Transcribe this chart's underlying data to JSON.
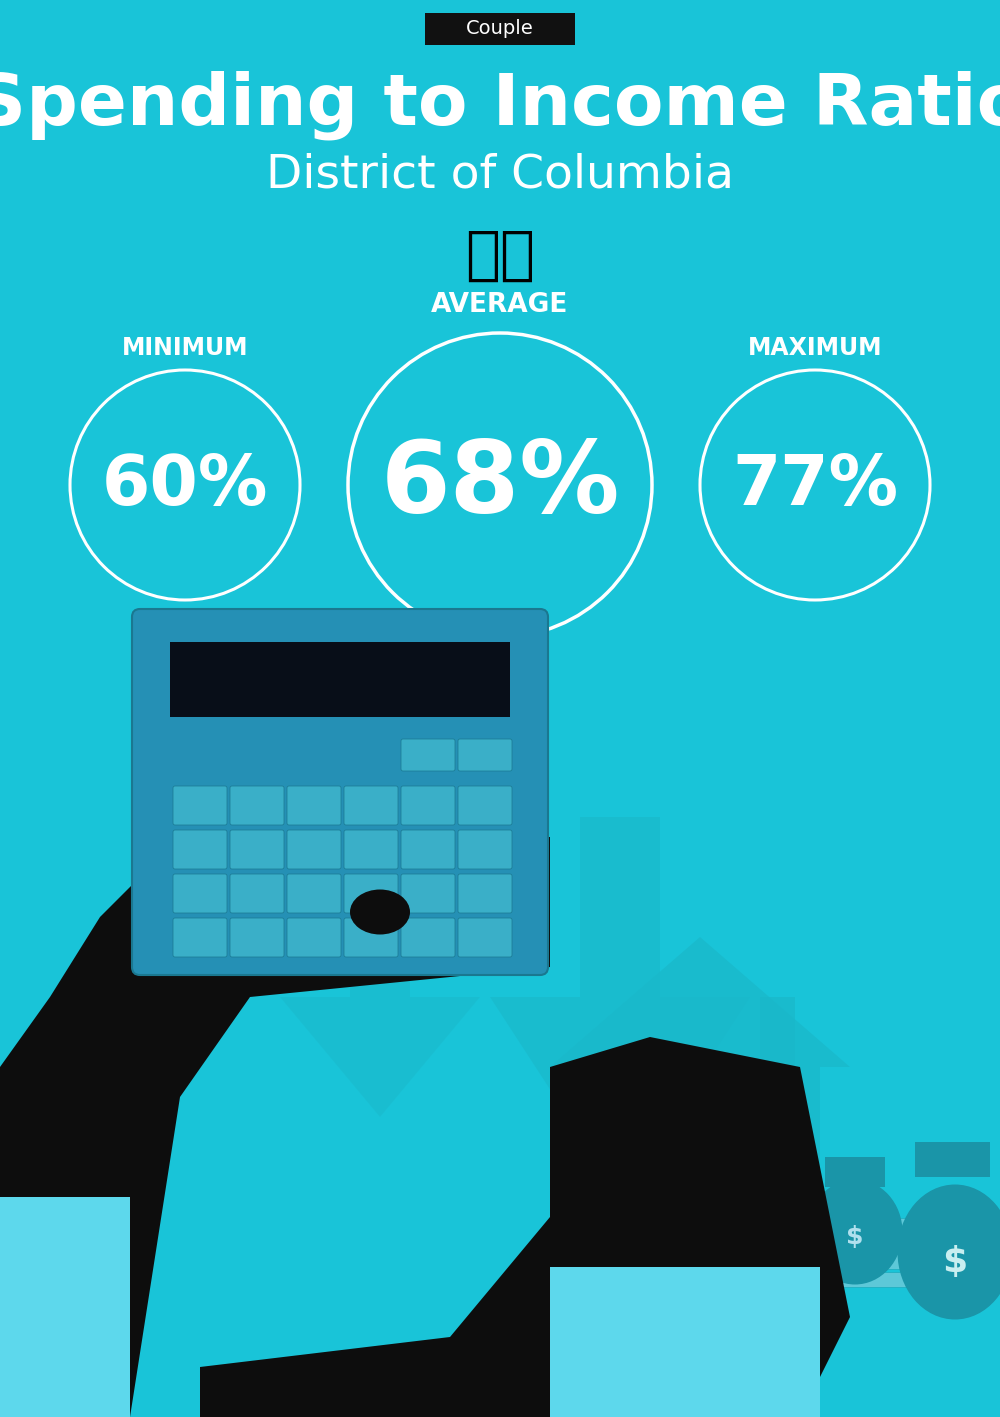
{
  "title_tag": "Couple",
  "title": "Spending to Income Ratio",
  "subtitle": "District of Columbia",
  "bg_color": "#19C4D8",
  "tag_bg": "#111111",
  "tag_text_color": "#ffffff",
  "title_color": "#ffffff",
  "subtitle_color": "#ffffff",
  "circle_color": "#ffffff",
  "text_color": "#ffffff",
  "min_label": "MINIMUM",
  "avg_label": "AVERAGE",
  "max_label": "MAXIMUM",
  "min_value": "60%",
  "avg_value": "68%",
  "max_value": "77%",
  "fig_width": 10.0,
  "fig_height": 14.17,
  "dpi": 100
}
